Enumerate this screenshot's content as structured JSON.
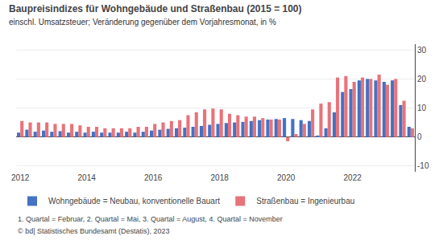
{
  "chart_data": {
    "type": "bar",
    "title": "Baupreisindizes für Wohngebäude und Straßenbau (2015 = 100)",
    "subtitle": "einschl. Umsatzsteuer; Veränderung gegenüber dem Vorjahresmonat, in %",
    "annotations": [
      "1. Quartal = Februar, 2. Quartal = Mai, 3. Quartal = August, 4. Quartal = November",
      "© bd| Statistisches Bundesamt (Destatis), 2023"
    ],
    "categories": [
      "2012",
      null,
      null,
      null,
      null,
      null,
      null,
      null,
      "2014",
      null,
      null,
      null,
      null,
      null,
      null,
      null,
      "2016",
      null,
      null,
      null,
      null,
      null,
      null,
      null,
      "2018",
      null,
      null,
      null,
      null,
      null,
      null,
      null,
      "2020",
      null,
      null,
      null,
      null,
      null,
      null,
      null,
      "2022",
      null,
      null,
      null,
      null,
      null,
      null,
      null
    ],
    "series": [
      {
        "name": "Wohngebäude = Neubau, konventionelle Bauart",
        "color": "#4472C4",
        "values": [
          1.5,
          2.5,
          1.8,
          2.2,
          1.8,
          2.0,
          1.5,
          1.8,
          1.5,
          1.8,
          1.5,
          1.5,
          1.5,
          1.8,
          1.5,
          1.8,
          2.2,
          2.5,
          2.8,
          3.0,
          3.2,
          3.5,
          3.8,
          4.2,
          4.5,
          4.8,
          5.0,
          5.2,
          5.5,
          5.8,
          6.0,
          6.2,
          6.5,
          6.2,
          5.8,
          5.5,
          0.5,
          3.0,
          8.5,
          15.5,
          16.5,
          19.5,
          20.0,
          19.5,
          19.0,
          19.5,
          11.0,
          3.5
        ]
      },
      {
        "name": "Straßenbau = Ingenieurbau",
        "color": "#E8737A",
        "values": [
          5.5,
          5.0,
          5.0,
          5.0,
          4.5,
          4.5,
          4.5,
          4.0,
          3.5,
          3.5,
          3.0,
          3.0,
          3.0,
          3.0,
          3.5,
          3.5,
          4.5,
          5.0,
          5.5,
          5.8,
          7.5,
          8.5,
          9.5,
          9.8,
          9.5,
          8.0,
          7.5,
          7.0,
          7.0,
          6.5,
          6.0,
          6.0,
          -1.5,
          1.0,
          4.5,
          9.5,
          11.5,
          12.0,
          20.5,
          21.0,
          19.0,
          20.5,
          20.0,
          21.5,
          18.0,
          20.0,
          12.5,
          3.0
        ]
      }
    ],
    "ylim": [
      -12,
      32
    ],
    "yticks": [
      -10,
      0,
      10,
      20,
      30
    ],
    "grid": true,
    "legend": "bottom"
  }
}
